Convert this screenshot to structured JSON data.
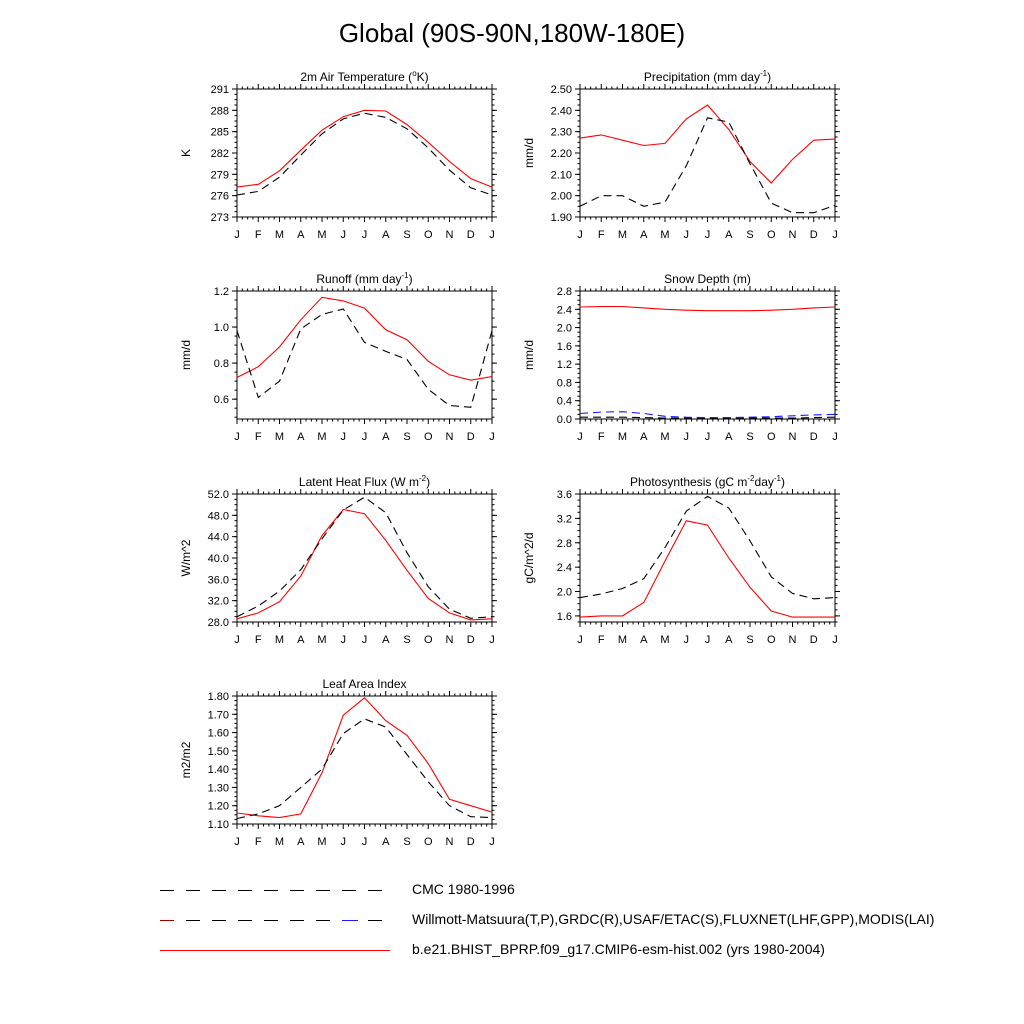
{
  "title": "Global (90S-90N,180W-180E)",
  "colors": {
    "model": "#ff0000",
    "obs": "#000000",
    "obs2": "#1a1aff"
  },
  "legend": [
    {
      "label": "CMC 1980-1996",
      "style": "dashed",
      "colors": [
        "#000000"
      ]
    },
    {
      "label": "Willmott-Matsuura(T,P),GRDC(R),USAF/ETAC(S),FLUXNET(LHF,GPP),MODIS(LAI)",
      "style": "dashed",
      "colors": [
        "#000000",
        "#ff0000",
        "#1a1aff"
      ]
    },
    {
      "label": "b.e21.BHIST_BPRP.f09_g17.CMIP6-esm-hist.002 (yrs 1980-2004)",
      "style": "solid",
      "colors": [
        "#ff0000"
      ]
    }
  ],
  "chart_data": [
    {
      "type": "line",
      "title": "2m Air Temperature (",
      "title_parts": [
        {
          "t": "2m Air Temperature ("
        },
        {
          "t": "o",
          "sup": true
        },
        {
          "t": "K)"
        }
      ],
      "ylabel": "K",
      "x": [
        "J",
        "F",
        "M",
        "A",
        "M",
        "J",
        "J",
        "A",
        "S",
        "O",
        "N",
        "D",
        "J"
      ],
      "ylim": [
        273,
        291
      ],
      "yticks": [
        "273",
        "276",
        "279",
        "282",
        "285",
        "288",
        "291"
      ],
      "series": [
        {
          "name": "model",
          "color": "#ff0000",
          "dash": "",
          "values": [
            277.2,
            277.6,
            279.5,
            282.4,
            285.2,
            287.1,
            288.0,
            287.9,
            286.0,
            283.5,
            280.8,
            278.4,
            277.2
          ]
        },
        {
          "name": "obs",
          "color": "#000000",
          "dash": "8,5",
          "values": [
            276.1,
            276.6,
            278.6,
            281.7,
            284.7,
            286.8,
            287.6,
            287.0,
            285.4,
            282.7,
            279.6,
            277.1,
            276.1
          ]
        }
      ]
    },
    {
      "type": "line",
      "title": "Precipitation (mm day",
      "title_parts": [
        {
          "t": "Precipitation (mm day"
        },
        {
          "t": "-1",
          "sup": true
        },
        {
          "t": ")"
        }
      ],
      "ylabel": "mm/d",
      "x": [
        "J",
        "F",
        "M",
        "A",
        "M",
        "J",
        "J",
        "A",
        "S",
        "O",
        "N",
        "D",
        "J"
      ],
      "ylim": [
        1.9,
        2.5
      ],
      "yticks": [
        "1.90",
        "2.00",
        "2.10",
        "2.20",
        "2.30",
        "2.40",
        "2.50"
      ],
      "series": [
        {
          "name": "model",
          "color": "#ff0000",
          "dash": "",
          "values": [
            2.27,
            2.285,
            2.26,
            2.235,
            2.245,
            2.36,
            2.425,
            2.31,
            2.16,
            2.06,
            2.17,
            2.26,
            2.265
          ]
        },
        {
          "name": "obs",
          "color": "#000000",
          "dash": "8,5",
          "values": [
            1.95,
            2.0,
            2.0,
            1.95,
            1.97,
            2.14,
            2.365,
            2.345,
            2.15,
            1.965,
            1.92,
            1.92,
            1.955
          ]
        }
      ]
    },
    {
      "type": "line",
      "title": "Runoff (mm day",
      "title_parts": [
        {
          "t": "Runoff (mm day"
        },
        {
          "t": "-1",
          "sup": true
        },
        {
          "t": ")"
        }
      ],
      "ylabel": "mm/d",
      "x": [
        "J",
        "F",
        "M",
        "A",
        "M",
        "J",
        "J",
        "A",
        "S",
        "O",
        "N",
        "D",
        "J"
      ],
      "ylim": [
        0.49,
        1.2
      ],
      "yticks": [
        "0.6",
        "0.8",
        "1.0",
        "1.2"
      ],
      "series": [
        {
          "name": "model",
          "color": "#ff0000",
          "dash": "",
          "values": [
            0.72,
            0.78,
            0.89,
            1.04,
            1.165,
            1.145,
            1.105,
            0.985,
            0.93,
            0.81,
            0.735,
            0.705,
            0.725
          ]
        },
        {
          "name": "obs",
          "color": "#000000",
          "dash": "8,5",
          "values": [
            0.98,
            0.61,
            0.7,
            0.99,
            1.07,
            1.1,
            0.915,
            0.865,
            0.82,
            0.655,
            0.565,
            0.555,
            0.98
          ]
        }
      ]
    },
    {
      "type": "line",
      "title": "Snow Depth (m)",
      "title_parts": [
        {
          "t": "Snow Depth (m)"
        }
      ],
      "ylabel": "mm/d",
      "x": [
        "J",
        "F",
        "M",
        "A",
        "M",
        "J",
        "J",
        "A",
        "S",
        "O",
        "N",
        "D",
        "J"
      ],
      "ylim": [
        0,
        2.8
      ],
      "yticks": [
        "0.0",
        "0.4",
        "0.8",
        "1.2",
        "1.6",
        "2.0",
        "2.4",
        "2.8"
      ],
      "series": [
        {
          "name": "model",
          "color": "#ff0000",
          "dash": "",
          "values": [
            2.45,
            2.46,
            2.46,
            2.43,
            2.4,
            2.38,
            2.37,
            2.37,
            2.37,
            2.38,
            2.4,
            2.43,
            2.45
          ]
        },
        {
          "name": "obs",
          "color": "#000000",
          "dash": "8,5",
          "values": [
            0.04,
            0.04,
            0.04,
            0.03,
            0.02,
            0.02,
            0.02,
            0.02,
            0.02,
            0.02,
            0.02,
            0.03,
            0.04
          ]
        },
        {
          "name": "obs2",
          "color": "#1a1aff",
          "dash": "8,5",
          "values": [
            0.12,
            0.15,
            0.16,
            0.12,
            0.06,
            0.04,
            0.03,
            0.03,
            0.04,
            0.05,
            0.07,
            0.09,
            0.1
          ]
        }
      ]
    },
    {
      "type": "line",
      "title": "Latent Heat Flux (W m",
      "title_parts": [
        {
          "t": "Latent Heat Flux (W m"
        },
        {
          "t": "-2",
          "sup": true
        },
        {
          "t": ")"
        }
      ],
      "ylabel": "W/m^2",
      "x": [
        "J",
        "F",
        "M",
        "A",
        "M",
        "J",
        "J",
        "A",
        "S",
        "O",
        "N",
        "D",
        "J"
      ],
      "ylim": [
        28,
        52
      ],
      "yticks": [
        "28.0",
        "32.0",
        "36.0",
        "40.0",
        "44.0",
        "48.0",
        "52.0"
      ],
      "series": [
        {
          "name": "model",
          "color": "#ff0000",
          "dash": "",
          "values": [
            28.6,
            29.7,
            31.8,
            36.6,
            44.2,
            49.1,
            48.3,
            43.3,
            37.7,
            32.4,
            29.7,
            28.4,
            28.6
          ]
        },
        {
          "name": "obs",
          "color": "#000000",
          "dash": "8,5",
          "values": [
            29.0,
            31.0,
            33.8,
            37.8,
            43.6,
            49.0,
            51.4,
            48.5,
            41.0,
            34.6,
            30.4,
            28.7,
            29.0
          ]
        }
      ]
    },
    {
      "type": "line",
      "title": "Photosynthesis (gC m",
      "title_parts": [
        {
          "t": "Photosynthesis (gC m"
        },
        {
          "t": "-2",
          "sup": true
        },
        {
          "t": "day"
        },
        {
          "t": "-1",
          "sup": true
        },
        {
          "t": ")"
        }
      ],
      "ylabel": "gC/m^2/d",
      "x": [
        "J",
        "F",
        "M",
        "A",
        "M",
        "J",
        "J",
        "A",
        "S",
        "O",
        "N",
        "D",
        "J"
      ],
      "ylim": [
        1.5,
        3.6
      ],
      "yticks": [
        "1.6",
        "2.0",
        "2.4",
        "2.8",
        "3.2",
        "3.6"
      ],
      "series": [
        {
          "name": "model",
          "color": "#ff0000",
          "dash": "",
          "values": [
            1.58,
            1.6,
            1.6,
            1.82,
            2.5,
            3.16,
            3.09,
            2.55,
            2.07,
            1.68,
            1.58,
            1.58,
            1.58
          ]
        },
        {
          "name": "obs",
          "color": "#000000",
          "dash": "8,5",
          "values": [
            1.9,
            1.96,
            2.05,
            2.21,
            2.72,
            3.32,
            3.56,
            3.37,
            2.83,
            2.24,
            1.97,
            1.88,
            1.9
          ]
        }
      ]
    },
    {
      "type": "line",
      "title": "Leaf Area Index",
      "title_parts": [
        {
          "t": "Leaf Area Index"
        }
      ],
      "ylabel": "m2/m2",
      "x": [
        "J",
        "F",
        "M",
        "A",
        "M",
        "J",
        "J",
        "A",
        "S",
        "O",
        "N",
        "D",
        "J"
      ],
      "ylim": [
        1.1,
        1.8
      ],
      "yticks": [
        "1.10",
        "1.20",
        "1.30",
        "1.40",
        "1.50",
        "1.60",
        "1.70",
        "1.80"
      ],
      "series": [
        {
          "name": "model",
          "color": "#ff0000",
          "dash": "",
          "values": [
            1.16,
            1.145,
            1.135,
            1.155,
            1.38,
            1.695,
            1.79,
            1.665,
            1.585,
            1.43,
            1.235,
            1.2,
            1.165
          ]
        },
        {
          "name": "obs",
          "color": "#000000",
          "dash": "8,5",
          "values": [
            1.13,
            1.155,
            1.2,
            1.3,
            1.4,
            1.595,
            1.675,
            1.63,
            1.48,
            1.33,
            1.2,
            1.14,
            1.135
          ]
        }
      ]
    }
  ]
}
